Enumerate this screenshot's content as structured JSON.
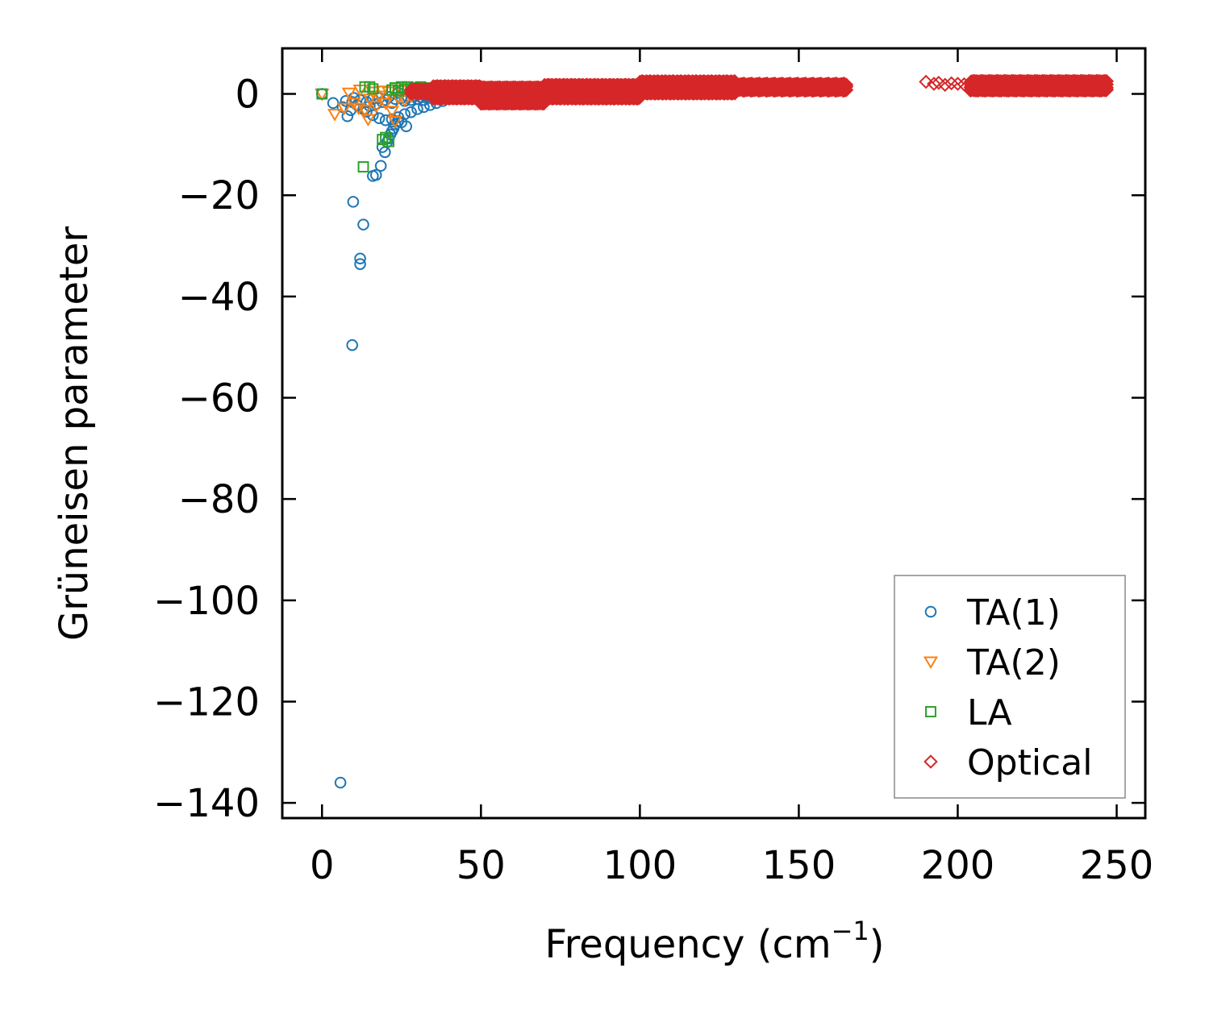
{
  "chart_data": {
    "type": "scatter",
    "title": "",
    "xlabel_main": "Frequency (cm",
    "xlabel_sup": "−1",
    "xlabel_end": ")",
    "ylabel": "Grüneisen parameter",
    "xlim": [
      -12.5,
      259
    ],
    "ylim": [
      -143,
      9
    ],
    "x_ticks": [
      0,
      50,
      100,
      150,
      200,
      250
    ],
    "x_tick_labels": [
      "0",
      "50",
      "100",
      "150",
      "200",
      "250"
    ],
    "y_ticks": [
      0,
      -20,
      -40,
      -60,
      -80,
      -100,
      -120,
      -140
    ],
    "y_tick_labels": [
      "0",
      "−20",
      "−40",
      "−60",
      "−80",
      "−100",
      "−120",
      "−140"
    ],
    "grid": false,
    "legend_position": "bottom-right",
    "series": [
      {
        "name": "TA(1)",
        "marker": "circle",
        "color": "#1f77b4",
        "points": [
          [
            0,
            0
          ],
          [
            3.5,
            -1.8
          ],
          [
            6.5,
            -2.6
          ],
          [
            7.5,
            -1.4
          ],
          [
            8,
            -4.4
          ],
          [
            9,
            -3.2
          ],
          [
            9.5,
            -1.6
          ],
          [
            10,
            -0.8
          ],
          [
            11,
            -2.2
          ],
          [
            12,
            -1.2
          ],
          [
            13,
            -3.0
          ],
          [
            14,
            -1.6
          ],
          [
            15,
            -2.4
          ],
          [
            16,
            -1.0
          ],
          [
            17,
            -2.0
          ],
          [
            18,
            -0.8
          ],
          [
            19,
            -1.6
          ],
          [
            20,
            -1.2
          ],
          [
            21,
            -0.6
          ],
          [
            22,
            -1.8
          ],
          [
            23,
            -1.0
          ],
          [
            24,
            0.2
          ],
          [
            25,
            -0.8
          ],
          [
            26,
            -1.4
          ],
          [
            27,
            -0.6
          ],
          [
            28,
            -1.2
          ],
          [
            29,
            -0.4
          ],
          [
            30,
            -1.0
          ],
          [
            31,
            -0.6
          ],
          [
            32,
            -1.2
          ],
          [
            33,
            -0.4
          ],
          [
            34,
            -0.8
          ],
          [
            35,
            -0.4
          ],
          [
            36,
            -0.6
          ],
          [
            37,
            -0.2
          ],
          [
            38,
            -0.6
          ],
          [
            39,
            -0.2
          ],
          [
            40,
            -0.4
          ],
          [
            41,
            -0.2
          ],
          [
            42,
            -0.3
          ],
          [
            43,
            -0.1
          ],
          [
            44,
            -0.2
          ],
          [
            14,
            -3.5
          ],
          [
            16,
            -4.2
          ],
          [
            18,
            -4.8
          ],
          [
            20,
            -5.2
          ],
          [
            22,
            -5.0
          ],
          [
            24,
            -4.6
          ],
          [
            26,
            -4.0
          ],
          [
            28,
            -3.6
          ],
          [
            30,
            -3.0
          ],
          [
            32,
            -2.6
          ],
          [
            34,
            -2.2
          ],
          [
            36,
            -1.8
          ],
          [
            38,
            -1.4
          ],
          [
            40,
            -1.0
          ],
          [
            19,
            -10.5
          ],
          [
            19.8,
            -11.5
          ],
          [
            20.5,
            -9.5
          ],
          [
            21,
            -8.8
          ],
          [
            21.5,
            -8.0
          ],
          [
            22,
            -7.4
          ],
          [
            22.5,
            -6.8
          ],
          [
            23,
            -6.0
          ],
          [
            24,
            -5.4
          ],
          [
            25,
            -5.6
          ],
          [
            26.5,
            -6.4
          ],
          [
            18.5,
            -14.2
          ],
          [
            17,
            -16.0
          ],
          [
            16,
            -16.2
          ],
          [
            9.8,
            -21.3
          ],
          [
            13,
            -25.8
          ],
          [
            12,
            -32.5
          ],
          [
            12,
            -33.6
          ],
          [
            9.5,
            -49.6
          ],
          [
            5.8,
            -136.0
          ]
        ]
      },
      {
        "name": "TA(2)",
        "marker": "triangle-down",
        "color": "#ff7f0e",
        "points": [
          [
            0,
            0
          ],
          [
            4,
            -4.0
          ],
          [
            7,
            -2.8
          ],
          [
            8.5,
            0.2
          ],
          [
            10,
            -1.8
          ],
          [
            11.5,
            -2.8
          ],
          [
            12,
            0.8
          ],
          [
            13.5,
            -3.2
          ],
          [
            14.5,
            -5.0
          ],
          [
            15,
            -1.0
          ],
          [
            16,
            0.4
          ],
          [
            17,
            -2.4
          ],
          [
            18,
            -0.4
          ],
          [
            19,
            0.6
          ],
          [
            20,
            -1.8
          ],
          [
            21,
            0.4
          ],
          [
            22,
            -3.4
          ],
          [
            23,
            -5.4
          ],
          [
            24,
            -0.8
          ],
          [
            25,
            0.8
          ],
          [
            26,
            -1.2
          ],
          [
            27,
            0.6
          ],
          [
            28,
            -0.4
          ],
          [
            29,
            0.8
          ],
          [
            30,
            0.2
          ],
          [
            31,
            1.0
          ],
          [
            32,
            0.4
          ],
          [
            33,
            0.8
          ],
          [
            34,
            0.2
          ],
          [
            35,
            1.0
          ],
          [
            36,
            0.6
          ],
          [
            37,
            1.0
          ],
          [
            38,
            0.4
          ],
          [
            39,
            0.8
          ],
          [
            40,
            0.6
          ],
          [
            41,
            1.0
          ],
          [
            42,
            0.6
          ],
          [
            43,
            0.8
          ],
          [
            44,
            0.4
          ],
          [
            45,
            0.6
          ],
          [
            46,
            0.3
          ],
          [
            47,
            0.5
          ]
        ]
      },
      {
        "name": "LA",
        "marker": "square",
        "color": "#2ca02c",
        "points": [
          [
            0,
            0
          ],
          [
            13.5,
            1.4
          ],
          [
            15,
            1.4
          ],
          [
            16,
            1.0
          ],
          [
            19,
            -9.0
          ],
          [
            20,
            -8.6
          ],
          [
            21,
            -9.4
          ],
          [
            13,
            -14.4
          ],
          [
            22,
            0.8
          ],
          [
            23,
            1.2
          ],
          [
            24,
            0.6
          ],
          [
            25,
            1.4
          ],
          [
            26,
            1.0
          ],
          [
            27,
            1.4
          ],
          [
            28,
            0.8
          ],
          [
            29,
            1.2
          ],
          [
            30,
            1.0
          ],
          [
            31,
            1.4
          ],
          [
            32,
            0.8
          ],
          [
            33,
            1.2
          ],
          [
            34,
            0.6
          ],
          [
            35,
            1.0
          ],
          [
            36,
            0.4
          ],
          [
            37,
            0.8
          ],
          [
            38,
            0.2
          ],
          [
            39,
            0.6
          ],
          [
            40,
            0.0
          ],
          [
            41,
            0.4
          ],
          [
            42,
            -0.2
          ],
          [
            43,
            0.2
          ],
          [
            44,
            -0.4
          ],
          [
            45,
            0.0
          ],
          [
            46,
            -0.4
          ],
          [
            47,
            -0.2
          ],
          [
            48,
            -0.6
          ],
          [
            49,
            -0.2
          ],
          [
            50,
            0.2
          ],
          [
            52,
            0.4
          ]
        ]
      },
      {
        "name": "Optical",
        "marker": "diamond",
        "color": "#d62728",
        "bands": [
          {
            "x_start": 28,
            "x_end": 35,
            "y_low": 0.2,
            "y_high": 1.2,
            "step": 0.6
          },
          {
            "x_start": 35,
            "x_end": 50,
            "y_low": -0.8,
            "y_high": 1.6,
            "step": 0.45
          },
          {
            "x_start": 50,
            "x_end": 70,
            "y_low": -1.8,
            "y_high": 1.4,
            "step": 0.5
          },
          {
            "x_start": 70,
            "x_end": 100,
            "y_low": -0.8,
            "y_high": 2.0,
            "step": 0.5
          },
          {
            "x_start": 100,
            "x_end": 130,
            "y_low": 0.2,
            "y_high": 2.6,
            "step": 0.55
          },
          {
            "x_start": 130,
            "x_end": 165,
            "y_low": 0.8,
            "y_high": 2.4,
            "step": 0.55
          },
          {
            "x_start": 204,
            "x_end": 247,
            "y_low": 0.8,
            "y_high": 2.6,
            "step": 0.55
          }
        ],
        "points": [
          [
            190,
            2.4
          ],
          [
            192.5,
            2.0
          ],
          [
            194,
            2.2
          ],
          [
            196,
            1.8
          ],
          [
            198,
            2.1
          ],
          [
            200,
            2.0
          ],
          [
            202,
            1.9
          ],
          [
            58,
            -0.2
          ],
          [
            62,
            1.0
          ],
          [
            66,
            -0.6
          ],
          [
            74,
            1.6
          ]
        ]
      }
    ]
  }
}
